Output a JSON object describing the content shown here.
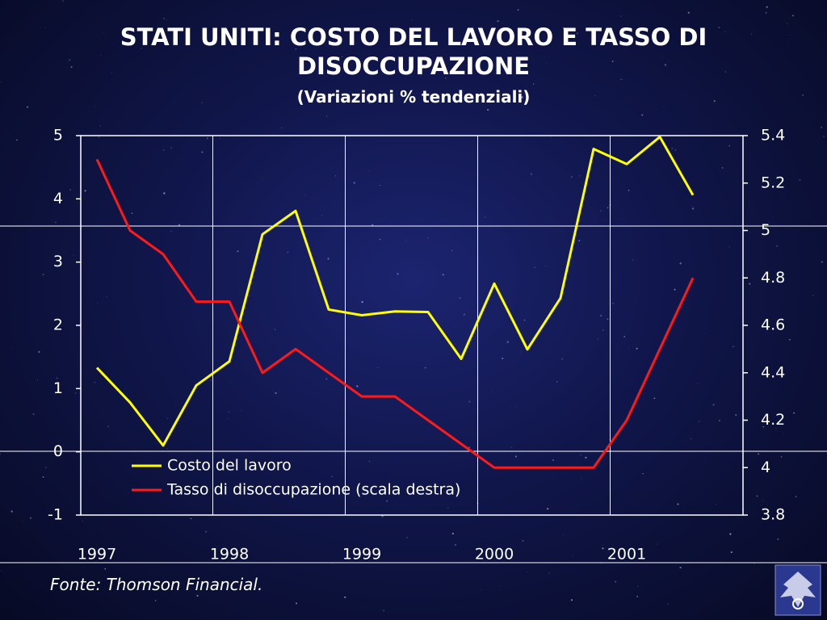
{
  "chart_data": {
    "type": "line",
    "title": "STATI UNITI: COSTO DEL LAVORO E TASSO DI DISOCCUPAZIONE",
    "subtitle": "(Variazioni % tendenziali)",
    "categories": [
      "1997",
      null,
      null,
      null,
      "1998",
      null,
      null,
      null,
      "1999",
      null,
      null,
      null,
      "2000",
      null,
      null,
      null,
      "2001",
      null,
      null
    ],
    "series": [
      {
        "name": "Costo del lavoro",
        "color": "#ffff00",
        "axis": "y",
        "values": [
          1.33,
          0.78,
          0.1,
          1.05,
          1.43,
          3.44,
          3.81,
          2.25,
          2.16,
          2.22,
          2.21,
          1.47,
          2.66,
          1.62,
          2.43,
          4.79,
          4.55,
          4.98,
          4.06
        ]
      },
      {
        "name": "Tasso di disoccupazione (scala destra)",
        "color": "#ff1a1a",
        "axis": "y2",
        "values": [
          5.3,
          5.0,
          4.9,
          4.7,
          4.7,
          4.4,
          4.5,
          4.4,
          4.3,
          4.3,
          4.2,
          4.1,
          4.0,
          4.0,
          4.0,
          4.0,
          4.2,
          4.5,
          4.8
        ]
      }
    ],
    "ylim": [
      -1,
      5
    ],
    "yticks": [
      -1,
      0,
      1,
      2,
      3,
      4,
      5
    ],
    "y2lim": [
      3.8,
      5.4
    ],
    "y2ticks": [
      3.8,
      4,
      4.2,
      4.4,
      4.6,
      4.8,
      5,
      5.2,
      5.4
    ],
    "legend": "lower-left",
    "source": "Fonte: Thomson Financial."
  }
}
